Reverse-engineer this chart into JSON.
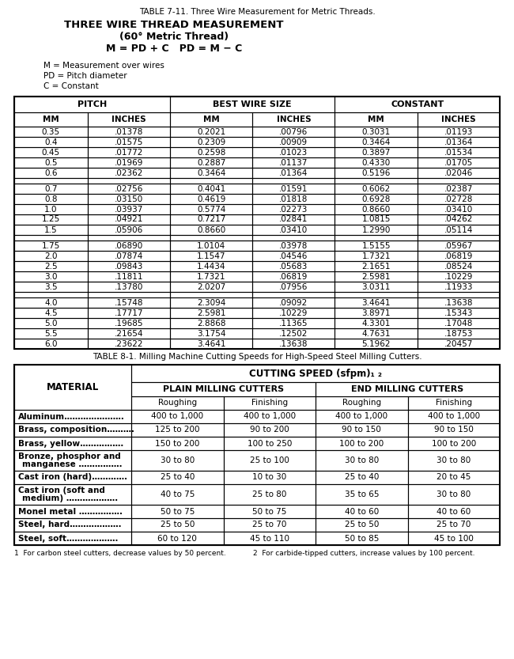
{
  "title1": "TABLE 7-11. Three Wire Measurement for Metric Threads.",
  "header1_line1": "THREE WIRE THREAD MEASUREMENT",
  "header1_line2": "(60° Metric Thread)",
  "header1_line3": "M = PD + C   PD = M − C",
  "header1_note1": "M = Measurement over wires",
  "header1_note2": "PD = Pitch diameter",
  "header1_note3": "C = Constant",
  "table1_col_headers": [
    "PITCH",
    "BEST WIRE SIZE",
    "CONSTANT"
  ],
  "table1_sub_headers": [
    "MM",
    "INCHES",
    "MM",
    "INCHES",
    "MM",
    "INCHES"
  ],
  "table1_groups": [
    [
      [
        "0.35",
        ".01378",
        "0.2021",
        ".00796",
        "0.3031",
        ".01193"
      ],
      [
        "0.4",
        ".01575",
        "0.2309",
        ".00909",
        "0.3464",
        ".01364"
      ],
      [
        "0.45",
        ".01772",
        "0.2598",
        ".01023",
        "0.3897",
        ".01534"
      ],
      [
        "0.5",
        ".01969",
        "0.2887",
        ".01137",
        "0.4330",
        ".01705"
      ],
      [
        "0.6",
        ".02362",
        "0.3464",
        ".01364",
        "0.5196",
        ".02046"
      ]
    ],
    [
      [
        "0.7",
        ".02756",
        "0.4041",
        ".01591",
        "0.6062",
        ".02387"
      ],
      [
        "0.8",
        ".03150",
        "0.4619",
        ".01818",
        "0.6928",
        ".02728"
      ],
      [
        "1.0",
        ".03937",
        "0.5774",
        ".02273",
        "0.8660",
        ".03410"
      ],
      [
        "1.25",
        ".04921",
        "0.7217",
        ".02841",
        "1.0815",
        ".04262"
      ],
      [
        "1.5",
        ".05906",
        "0.8660",
        ".03410",
        "1.2990",
        ".05114"
      ]
    ],
    [
      [
        "1.75",
        ".06890",
        "1.0104",
        ".03978",
        "1.5155",
        ".05967"
      ],
      [
        "2.0",
        ".07874",
        "1.1547",
        ".04546",
        "1.7321",
        ".06819"
      ],
      [
        "2.5",
        ".09843",
        "1.4434",
        ".05683",
        "2.1651",
        ".08524"
      ],
      [
        "3.0",
        ".11811",
        "1.7321",
        ".06819",
        "2.5981",
        ".10229"
      ],
      [
        "3.5",
        ".13780",
        "2.0207",
        ".07956",
        "3.0311",
        ".11933"
      ]
    ],
    [
      [
        "4.0",
        ".15748",
        "2.3094",
        ".09092",
        "3.4641",
        ".13638"
      ],
      [
        "4.5",
        ".17717",
        "2.5981",
        ".10229",
        "3.8971",
        ".15343"
      ],
      [
        "5.0",
        ".19685",
        "2.8868",
        ".11365",
        "4.3301",
        ".17048"
      ],
      [
        "5.5",
        ".21654",
        "3.1754",
        ".12502",
        "4.7631",
        ".18753"
      ],
      [
        "6.0",
        ".23622",
        "3.4641",
        ".13638",
        "5.1962",
        ".20457"
      ]
    ]
  ],
  "title2": "TABLE 8-1. Milling Machine Cutting Speeds for High-Speed Steel Milling Cutters.",
  "table2_top_header": "CUTTING SPEED (sfpm)₁ ₂",
  "table2_mid_headers": [
    "PLAIN MILLING CUTTERS",
    "END MILLING CUTTERS"
  ],
  "table2_sub_headers": [
    "Roughing",
    "Finishing",
    "Roughing",
    "Finishing"
  ],
  "table2_material_col": "MATERIAL",
  "table2_rows": [
    [
      "Aluminum………………….",
      "400 to 1,000",
      "400 to 1,000",
      "400 to 1,000",
      "400 to 1,000"
    ],
    [
      "Brass, composition……….",
      "125 to 200",
      "90 to 200",
      "90 to 150",
      "90 to 150"
    ],
    [
      "Brass, yellow…………….",
      "150 to 200",
      "100 to 250",
      "100 to 200",
      "100 to 200"
    ],
    [
      "Bronze, phosphor and\nmanganese …………….",
      "30 to 80",
      "25 to 100",
      "30 to 80",
      "30 to 80"
    ],
    [
      "Cast iron (hard)………….",
      "25 to 40",
      "10 to 30",
      "25 to 40",
      "20 to 45"
    ],
    [
      "Cast iron (soft and\nmedium) ……………….",
      "40 to 75",
      "25 to 80",
      "35 to 65",
      "30 to 80"
    ],
    [
      "Monel metal …………….",
      "50 to 75",
      "50 to 75",
      "40 to 60",
      "40 to 60"
    ],
    [
      "Steel, hard……………….",
      "25 to 50",
      "25 to 70",
      "25 to 50",
      "25 to 70"
    ],
    [
      "Steel, soft……………….",
      "60 to 120",
      "45 to 110",
      "50 to 85",
      "45 to 100"
    ]
  ],
  "footnote1": "1  For carbon steel cutters, decrease values by 50 percent.",
  "footnote2": "2  For carbide-tipped cutters, increase values by 100 percent.",
  "bg_color": "#ffffff"
}
